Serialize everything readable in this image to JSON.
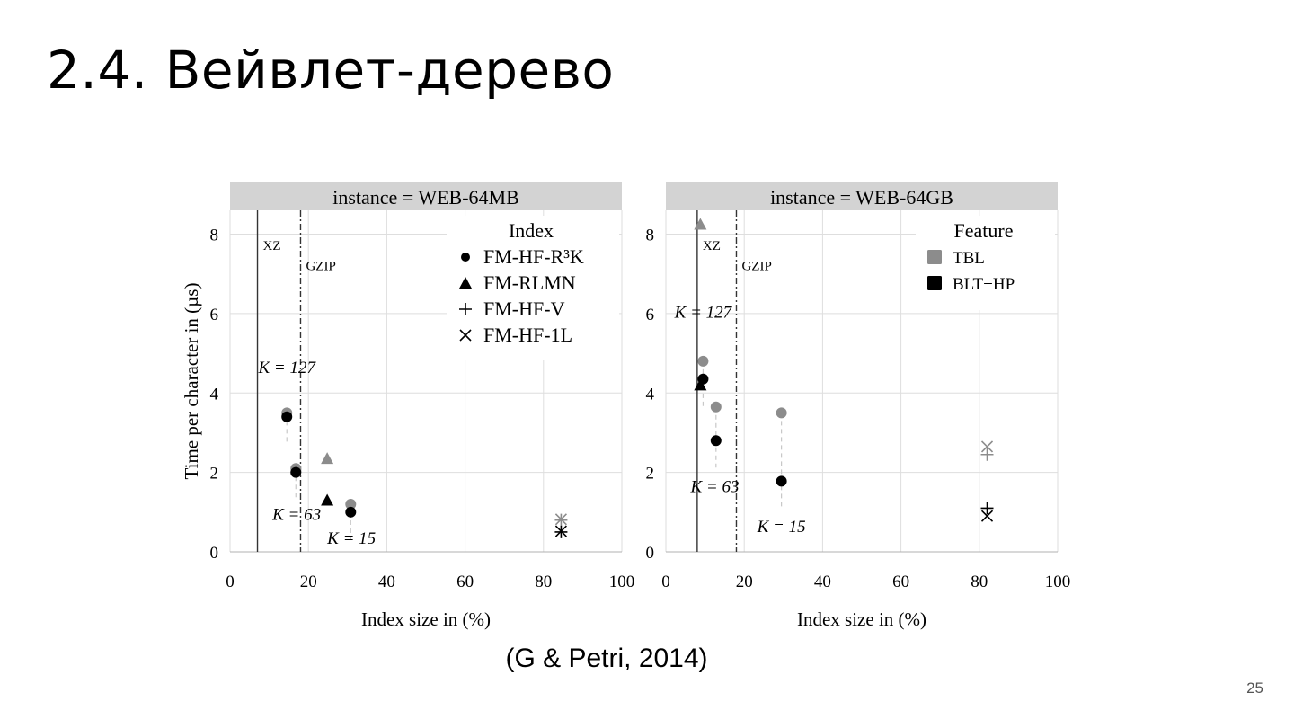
{
  "slide": {
    "title": "2.4. Вейвлет-дерево",
    "citation": "(G & Petri, 2014)",
    "page_number": "25"
  },
  "colors": {
    "tbl": "#8c8c8c",
    "blt_hp": "#000000",
    "grid": "#dedede",
    "strip": "#d3d3d3"
  },
  "chart_data": [
    {
      "type": "scatter",
      "title": "instance = WEB-64MB",
      "xlabel": "Index size in (%)",
      "ylabel": "Time per character in (µs)",
      "xlim": [
        0,
        100
      ],
      "ylim": [
        0,
        8.6
      ],
      "xticks": [
        0,
        20,
        40,
        60,
        80,
        100
      ],
      "yticks": [
        0,
        2,
        4,
        6,
        8
      ],
      "grid": true,
      "legend": {
        "title": "Index",
        "placement": "top-right",
        "entries": [
          {
            "marker": "circle",
            "label": "FM-HF-R³K"
          },
          {
            "marker": "triangle",
            "label": "FM-RLMN"
          },
          {
            "marker": "plus",
            "label": "FM-HF-V"
          },
          {
            "marker": "cross",
            "label": "FM-HF-1L"
          }
        ]
      },
      "vlines": [
        {
          "x": 7,
          "style": "solid",
          "label": "XZ",
          "label_y": 7.6
        },
        {
          "x": 18,
          "style": "dashdot",
          "label": "GZIP",
          "label_y": 7.1
        }
      ],
      "annotations": [
        {
          "text": "K = 127",
          "x": 14.5,
          "y": 4.5
        },
        {
          "text": "K = 63",
          "x": 17,
          "y": 0.8
        },
        {
          "text": "K = 15",
          "x": 31,
          "y": 0.2
        }
      ],
      "pairs": [
        {
          "x": 14.5,
          "y1": 3.5,
          "y2": 3.4
        },
        {
          "x": 16.8,
          "y1": 2.1,
          "y2": 2.0
        },
        {
          "x": 30.8,
          "y1": 1.2,
          "y2": 1.0
        }
      ],
      "points": [
        {
          "marker": "circle",
          "feature": "TBL",
          "x": 14.5,
          "y": 3.5
        },
        {
          "marker": "circle",
          "feature": "BLT+HP",
          "x": 14.5,
          "y": 3.4
        },
        {
          "marker": "circle",
          "feature": "TBL",
          "x": 16.8,
          "y": 2.1
        },
        {
          "marker": "circle",
          "feature": "BLT+HP",
          "x": 16.8,
          "y": 2.0
        },
        {
          "marker": "circle",
          "feature": "TBL",
          "x": 30.8,
          "y": 1.2
        },
        {
          "marker": "circle",
          "feature": "BLT+HP",
          "x": 30.8,
          "y": 1.0
        },
        {
          "marker": "triangle",
          "feature": "TBL",
          "x": 24.8,
          "y": 2.35
        },
        {
          "marker": "triangle",
          "feature": "BLT+HP",
          "x": 24.8,
          "y": 1.3
        },
        {
          "marker": "plus",
          "feature": "TBL",
          "x": 84.5,
          "y": 0.8
        },
        {
          "marker": "cross",
          "feature": "TBL",
          "x": 84.5,
          "y": 0.82
        },
        {
          "marker": "plus",
          "feature": "BLT+HP",
          "x": 84.5,
          "y": 0.5
        },
        {
          "marker": "cross",
          "feature": "BLT+HP",
          "x": 84.5,
          "y": 0.52
        }
      ]
    },
    {
      "type": "scatter",
      "title": "instance = WEB-64GB",
      "xlabel": "Index size in (%)",
      "ylabel": "",
      "xlim": [
        0,
        100
      ],
      "ylim": [
        0,
        8.6
      ],
      "xticks": [
        0,
        20,
        40,
        60,
        80,
        100
      ],
      "yticks": [
        0,
        2,
        4,
        6,
        8
      ],
      "grid": true,
      "legend": {
        "title": "Feature",
        "placement": "top-right",
        "entries": [
          {
            "marker": "square",
            "feature": "TBL",
            "label": "TBL"
          },
          {
            "marker": "square",
            "feature": "BLT+HP",
            "label": "BLT+HP"
          }
        ]
      },
      "vlines": [
        {
          "x": 8,
          "style": "solid",
          "label": "XZ",
          "label_y": 7.6
        },
        {
          "x": 18,
          "style": "dashdot",
          "label": "GZIP",
          "label_y": 7.1
        }
      ],
      "annotations": [
        {
          "text": "K = 127",
          "x": 9.5,
          "y": 5.9
        },
        {
          "text": "K = 63",
          "x": 12.5,
          "y": 1.5
        },
        {
          "text": "K = 15",
          "x": 29.5,
          "y": 0.5
        }
      ],
      "pairs": [
        {
          "x": 9.5,
          "y1": 4.8,
          "y2": 4.35
        },
        {
          "x": 12.8,
          "y1": 3.65,
          "y2": 2.8
        },
        {
          "x": 29.5,
          "y1": 3.5,
          "y2": 1.78
        }
      ],
      "points": [
        {
          "marker": "circle",
          "feature": "TBL",
          "x": 9.5,
          "y": 4.8
        },
        {
          "marker": "circle",
          "feature": "BLT+HP",
          "x": 9.5,
          "y": 4.35
        },
        {
          "marker": "circle",
          "feature": "TBL",
          "x": 12.8,
          "y": 3.65
        },
        {
          "marker": "circle",
          "feature": "BLT+HP",
          "x": 12.8,
          "y": 2.8
        },
        {
          "marker": "circle",
          "feature": "TBL",
          "x": 29.5,
          "y": 3.5
        },
        {
          "marker": "circle",
          "feature": "BLT+HP",
          "x": 29.5,
          "y": 1.78
        },
        {
          "marker": "triangle",
          "feature": "TBL",
          "x": 8.8,
          "y": 8.25
        },
        {
          "marker": "triangle",
          "feature": "BLT+HP",
          "x": 8.8,
          "y": 4.2
        },
        {
          "marker": "cross",
          "feature": "TBL",
          "x": 82,
          "y": 2.65
        },
        {
          "marker": "plus",
          "feature": "TBL",
          "x": 82,
          "y": 2.45
        },
        {
          "marker": "plus",
          "feature": "BLT+HP",
          "x": 82,
          "y": 1.1
        },
        {
          "marker": "cross",
          "feature": "BLT+HP",
          "x": 82,
          "y": 0.9
        }
      ]
    }
  ]
}
